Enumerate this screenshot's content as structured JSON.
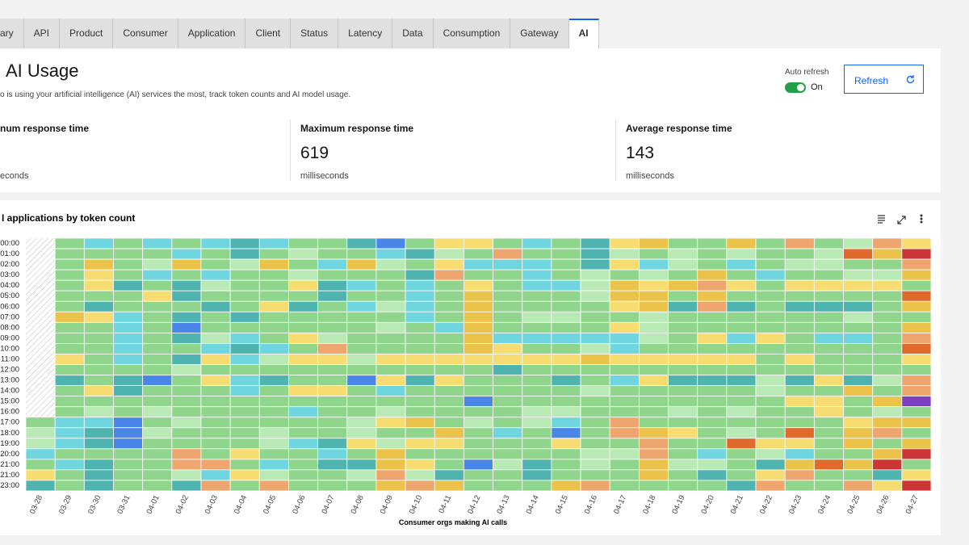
{
  "tabs": [
    "ary",
    "API",
    "Product",
    "Consumer",
    "Application",
    "Client",
    "Status",
    "Latency",
    "Data",
    "Consumption",
    "Gateway",
    "AI"
  ],
  "header": {
    "title": "AI Usage",
    "subtitle": "o is using your artificial intelligence (AI) services the most, track token counts and AI model usage.",
    "auto_refresh_label": "Auto refresh",
    "toggle_state": "On",
    "refresh_button": "Refresh"
  },
  "stats": [
    {
      "label": "num response time",
      "unit": "econds"
    },
    {
      "label": "Maximum response time",
      "value": "619",
      "unit": "milliseconds"
    },
    {
      "label": "Average response time",
      "value": "143",
      "unit": "milliseconds"
    }
  ],
  "chart_data": {
    "type": "heatmap",
    "title": "I applications by token count",
    "x_label": "Consumer orgs making AI calls",
    "categories": [
      "03-28",
      "03-29",
      "03-30",
      "03-31",
      "04-01",
      "04-02",
      "04-03",
      "04-04",
      "04-05",
      "04-06",
      "04-07",
      "04-08",
      "04-09",
      "04-10",
      "04-11",
      "04-12",
      "04-13",
      "04-14",
      "04-15",
      "04-16",
      "04-17",
      "04-18",
      "04-19",
      "04-20",
      "04-21",
      "04-22",
      "04-23",
      "04-24",
      "04-25",
      "04-26",
      "04-27"
    ],
    "y_categories": [
      "00:00",
      "01:00",
      "02:00",
      "03:00",
      "04:00",
      "05:00",
      "06:00",
      "07:00",
      "08:00",
      "09:00",
      "10:00",
      "11:00",
      "12:00",
      "13:00",
      "14:00",
      "15:00",
      "16:00",
      "17:00",
      "18:00",
      "19:00",
      "20:00",
      "21:00",
      "21:00",
      "23:00"
    ],
    "colors": [
      "#4a86e8",
      "#4fb3b0",
      "#6fd6df",
      "#b9e9b4",
      "#8fd68c",
      "#f7dc72",
      "#ebc24a",
      "#eea56e",
      "#e06a2c",
      "#cc3535",
      "#7b3fbf"
    ],
    "values": [
      [
        null,
        5,
        3,
        5,
        3,
        5,
        3,
        2,
        3,
        5,
        5,
        2,
        1,
        5,
        6,
        6,
        5,
        3,
        5,
        2,
        6,
        7,
        5,
        5,
        7,
        5,
        8,
        5,
        4,
        8,
        6
      ],
      [
        null,
        5,
        5,
        5,
        5,
        3,
        5,
        2,
        5,
        4,
        5,
        5,
        3,
        2,
        4,
        5,
        8,
        5,
        5,
        2,
        4,
        5,
        4,
        5,
        4,
        5,
        5,
        4,
        9,
        7,
        10
      ],
      [
        null,
        5,
        7,
        5,
        4,
        7,
        5,
        4,
        7,
        5,
        3,
        7,
        4,
        5,
        6,
        3,
        3,
        3,
        5,
        2,
        6,
        3,
        4,
        5,
        3,
        5,
        4,
        4,
        5,
        5,
        8
      ],
      [
        null,
        5,
        6,
        5,
        3,
        5,
        3,
        5,
        5,
        4,
        5,
        5,
        5,
        2,
        8,
        5,
        5,
        3,
        5,
        4,
        5,
        4,
        5,
        7,
        5,
        3,
        5,
        5,
        4,
        4,
        7
      ],
      [
        null,
        5,
        6,
        2,
        5,
        2,
        4,
        5,
        5,
        6,
        2,
        3,
        5,
        3,
        5,
        6,
        5,
        3,
        3,
        4,
        7,
        6,
        7,
        8,
        6,
        5,
        6,
        6,
        6,
        6,
        5
      ],
      [
        null,
        5,
        5,
        5,
        6,
        2,
        5,
        5,
        5,
        5,
        2,
        5,
        5,
        3,
        5,
        7,
        5,
        5,
        5,
        4,
        7,
        7,
        5,
        7,
        5,
        5,
        5,
        5,
        5,
        5,
        9
      ],
      [
        null,
        5,
        2,
        5,
        5,
        5,
        2,
        5,
        6,
        2,
        5,
        3,
        4,
        3,
        5,
        7,
        5,
        5,
        5,
        5,
        6,
        7,
        2,
        8,
        2,
        5,
        2,
        2,
        2,
        5,
        7
      ],
      [
        null,
        7,
        6,
        3,
        5,
        2,
        5,
        2,
        5,
        5,
        5,
        5,
        5,
        3,
        5,
        7,
        5,
        4,
        4,
        5,
        5,
        4,
        5,
        5,
        5,
        5,
        5,
        5,
        4,
        5,
        5
      ],
      [
        null,
        5,
        5,
        3,
        5,
        1,
        5,
        5,
        5,
        5,
        5,
        5,
        4,
        5,
        3,
        7,
        5,
        5,
        5,
        5,
        6,
        4,
        5,
        5,
        5,
        5,
        5,
        5,
        5,
        5,
        7
      ],
      [
        null,
        5,
        5,
        3,
        5,
        2,
        4,
        3,
        5,
        6,
        4,
        5,
        5,
        5,
        5,
        7,
        3,
        3,
        3,
        3,
        3,
        4,
        5,
        6,
        3,
        6,
        5,
        3,
        3,
        5,
        8
      ],
      [
        null,
        5,
        5,
        3,
        5,
        5,
        3,
        2,
        3,
        5,
        8,
        5,
        5,
        5,
        5,
        7,
        6,
        5,
        5,
        4,
        3,
        5,
        5,
        5,
        5,
        5,
        5,
        5,
        5,
        5,
        9
      ],
      [
        null,
        6,
        5,
        3,
        5,
        2,
        6,
        3,
        4,
        6,
        6,
        4,
        6,
        6,
        6,
        6,
        6,
        6,
        6,
        7,
        6,
        6,
        6,
        6,
        6,
        5,
        6,
        5,
        5,
        5,
        6
      ],
      [
        null,
        5,
        5,
        5,
        5,
        4,
        5,
        5,
        5,
        5,
        5,
        5,
        5,
        5,
        5,
        5,
        2,
        5,
        5,
        5,
        5,
        5,
        5,
        5,
        5,
        5,
        5,
        5,
        5,
        5,
        5
      ],
      [
        null,
        2,
        5,
        2,
        1,
        5,
        6,
        3,
        2,
        5,
        5,
        1,
        6,
        2,
        6,
        5,
        5,
        5,
        2,
        5,
        3,
        6,
        2,
        2,
        2,
        4,
        2,
        6,
        2,
        4,
        8
      ],
      [
        null,
        5,
        6,
        2,
        5,
        5,
        5,
        3,
        5,
        6,
        6,
        5,
        3,
        5,
        5,
        5,
        5,
        5,
        5,
        4,
        5,
        5,
        5,
        5,
        5,
        4,
        5,
        5,
        7,
        5,
        8
      ],
      [
        null,
        5,
        5,
        5,
        5,
        5,
        5,
        5,
        5,
        5,
        5,
        5,
        5,
        5,
        5,
        1,
        5,
        5,
        5,
        5,
        5,
        5,
        5,
        5,
        5,
        5,
        6,
        6,
        5,
        7,
        11
      ],
      [
        null,
        5,
        4,
        5,
        4,
        5,
        5,
        5,
        5,
        3,
        5,
        5,
        4,
        5,
        5,
        5,
        5,
        4,
        4,
        5,
        5,
        5,
        4,
        5,
        4,
        5,
        5,
        6,
        5,
        4,
        5
      ],
      [
        5,
        3,
        3,
        1,
        5,
        4,
        5,
        5,
        5,
        5,
        5,
        4,
        6,
        7,
        5,
        4,
        5,
        4,
        3,
        5,
        8,
        5,
        5,
        5,
        5,
        5,
        5,
        5,
        6,
        7,
        7
      ],
      [
        4,
        3,
        2,
        1,
        4,
        5,
        5,
        5,
        4,
        5,
        5,
        4,
        5,
        5,
        7,
        5,
        3,
        5,
        1,
        5,
        8,
        7,
        6,
        5,
        4,
        5,
        9,
        5,
        7,
        8,
        5
      ],
      [
        4,
        3,
        2,
        1,
        5,
        5,
        5,
        5,
        4,
        3,
        2,
        6,
        4,
        6,
        6,
        5,
        5,
        5,
        6,
        5,
        5,
        8,
        5,
        5,
        9,
        6,
        6,
        5,
        7,
        5,
        7
      ],
      [
        3,
        5,
        5,
        5,
        5,
        8,
        5,
        6,
        5,
        5,
        3,
        5,
        7,
        5,
        5,
        5,
        5,
        5,
        5,
        4,
        4,
        8,
        5,
        3,
        5,
        4,
        3,
        5,
        5,
        7,
        10
      ],
      [
        5,
        3,
        2,
        5,
        5,
        8,
        8,
        5,
        3,
        5,
        2,
        2,
        7,
        6,
        5,
        1,
        4,
        2,
        5,
        4,
        5,
        7,
        4,
        4,
        5,
        2,
        7,
        9,
        7,
        10,
        5
      ],
      [
        6,
        5,
        2,
        5,
        5,
        4,
        3,
        6,
        4,
        5,
        5,
        4,
        8,
        4,
        2,
        5,
        5,
        2,
        5,
        5,
        5,
        7,
        5,
        2,
        5,
        6,
        8,
        5,
        5,
        2,
        6
      ],
      [
        2,
        5,
        2,
        5,
        5,
        2,
        8,
        5,
        8,
        5,
        5,
        5,
        7,
        8,
        7,
        5,
        5,
        5,
        7,
        8,
        5,
        5,
        5,
        5,
        2,
        8,
        5,
        5,
        8,
        6,
        10
      ]
    ]
  }
}
